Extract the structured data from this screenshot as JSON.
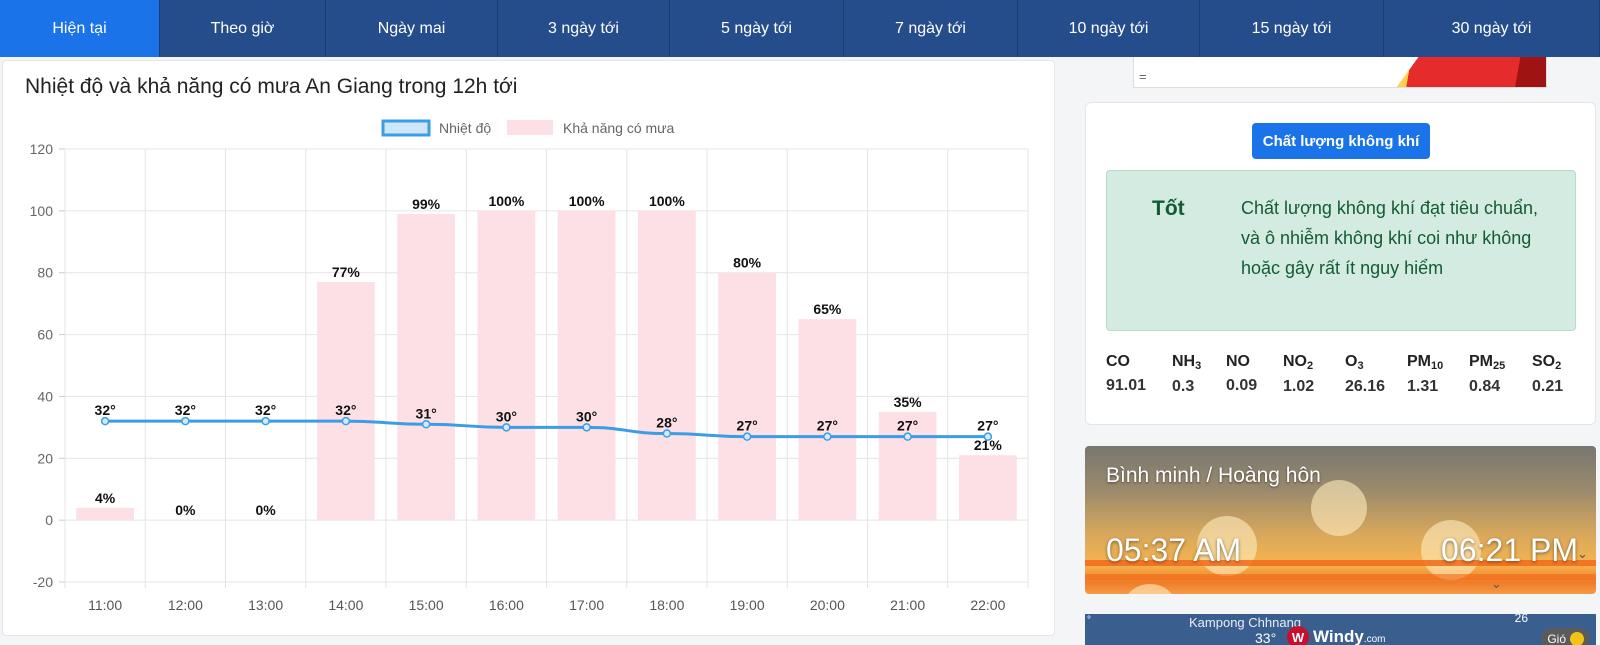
{
  "tabs": [
    {
      "label": "Hiện tại",
      "active": true
    },
    {
      "label": "Theo giờ",
      "active": false
    },
    {
      "label": "Ngày mai",
      "active": false
    },
    {
      "label": "3 ngày tới",
      "active": false
    },
    {
      "label": "5 ngày tới",
      "active": false
    },
    {
      "label": "7 ngày tới",
      "active": false
    },
    {
      "label": "10 ngày tới",
      "active": false
    },
    {
      "label": "15 ngày tới",
      "active": false
    },
    {
      "label": "30 ngày tới",
      "active": false
    }
  ],
  "chart_title": "Nhiệt độ và khả năng có mưa An Giang trong 12h tới",
  "chart_data": {
    "type": "bar",
    "title": "Nhiệt độ và khả năng có mưa An Giang trong 12h tới",
    "categories": [
      "11:00",
      "12:00",
      "13:00",
      "14:00",
      "15:00",
      "16:00",
      "17:00",
      "18:00",
      "19:00",
      "20:00",
      "21:00",
      "22:00"
    ],
    "series": [
      {
        "name": "Nhiệt độ",
        "type": "line",
        "values": [
          32,
          32,
          32,
          32,
          31,
          30,
          30,
          28,
          27,
          27,
          27,
          27
        ],
        "label_suffix": "°",
        "color": "#3b9de3"
      },
      {
        "name": "Khả năng có mưa",
        "type": "bar",
        "values": [
          4,
          0,
          0,
          77,
          99,
          100,
          100,
          100,
          80,
          65,
          35,
          21
        ],
        "label_suffix": "%",
        "color": "#fde0e5"
      }
    ],
    "ylim": [
      -20,
      120
    ],
    "yticks": [
      -20,
      0,
      20,
      40,
      60,
      80,
      100,
      120
    ],
    "grid": true,
    "legend": "top-center",
    "xlabel": "",
    "ylabel": ""
  },
  "banner": {
    "symbol": "="
  },
  "aqi": {
    "button_label": "Chất lượng không khí",
    "level": "Tốt",
    "description": "Chất lượng không khí đạt tiêu chuẩn, và ô nhiễm không khí coi như không hoặc gây rất ít nguy hiểm",
    "pollutants": [
      {
        "name": "CO",
        "sub": "",
        "value": "91.01"
      },
      {
        "name": "NH",
        "sub": "3",
        "value": "0.3"
      },
      {
        "name": "NO",
        "sub": "",
        "value": "0.09"
      },
      {
        "name": "NO",
        "sub": "2",
        "value": "1.02"
      },
      {
        "name": "O",
        "sub": "3",
        "value": "26.16"
      },
      {
        "name": "PM",
        "sub": "10",
        "value": "1.31"
      },
      {
        "name": "PM",
        "sub": "25",
        "value": "0.84"
      },
      {
        "name": "SO",
        "sub": "2",
        "value": "0.21"
      }
    ]
  },
  "sun": {
    "title": "Bình minh / Hoàng hôn",
    "sunrise": "05:37 AM",
    "sunset": "06:21 PM"
  },
  "map": {
    "city": "Kampong Chhnang",
    "temp": "33°",
    "brand": "Windy",
    "brand_suffix": ".com",
    "corner_num": "26",
    "wind_label": "Gió"
  },
  "icons": {
    "windy": "windy-logo-icon",
    "wind": "wind-icon"
  }
}
